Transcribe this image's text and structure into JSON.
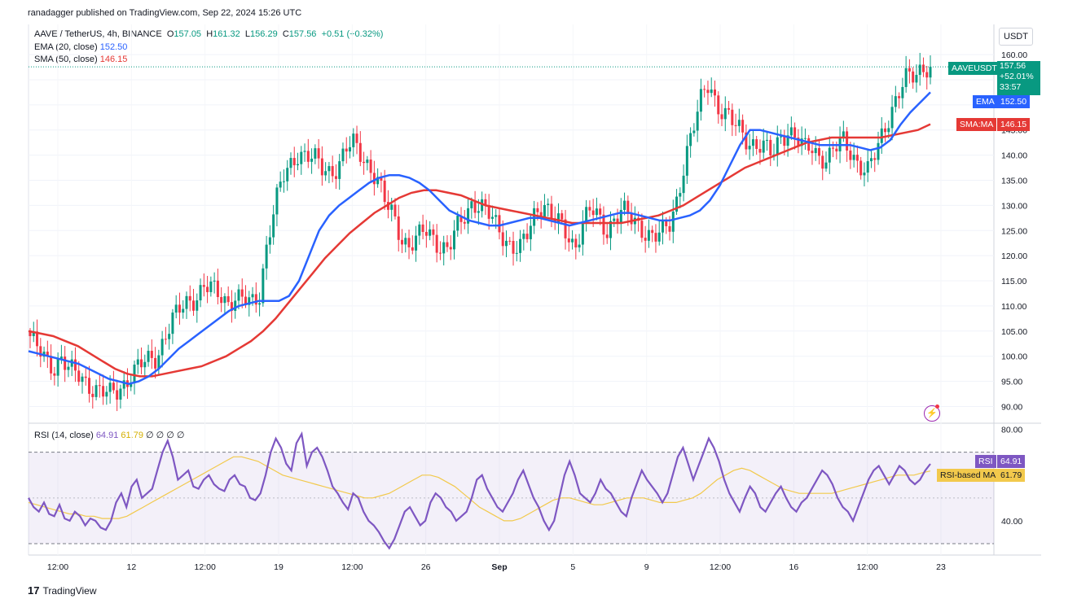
{
  "header": {
    "published": "ranadagger published on TradingView.com, Sep 22, 2024 15:26 UTC"
  },
  "legend": {
    "symbol": "AAVE / TetherUS, 4h, BINANCE",
    "o_label": "O",
    "o_value": "157.05",
    "h_label": "H",
    "h_value": "161.32",
    "l_label": "L",
    "l_value": "156.29",
    "c_label": "C",
    "c_value": "157.56",
    "change": "+0.51 (+0.32%)",
    "ema_label": "EMA (20, close)",
    "ema_value": "152.50",
    "sma_label": "SMA (50, close)",
    "sma_value": "146.15"
  },
  "rsi_legend": {
    "label": "RSI (14, close)",
    "rsi_value": "64.91",
    "ma_value": "61.79",
    "extra": "∅ ∅ ∅ ∅"
  },
  "axis": {
    "currency": "USDT"
  },
  "price_tags": {
    "symbol": "AAVEUSDT",
    "price": "157.56",
    "change_pct": "+52.01%",
    "countdown": "33:57",
    "ema_label": "EMA",
    "ema_value": "152.50",
    "sma_label": "SMA:MA",
    "sma_value": "146.15",
    "rsi_label": "RSI",
    "rsi_value": "64.91",
    "rsi_ma_label": "RSI-based MA",
    "rsi_ma_value": "61.79"
  },
  "footer": {
    "brand": "TradingView",
    "logo": "17"
  },
  "colors": {
    "up": "#089981",
    "down": "#f23645",
    "ema": "#2962ff",
    "sma": "#e53935",
    "rsi": "#7e57c2",
    "rsi_ma": "#f2c94c",
    "rsi_band": "#7e57c2"
  },
  "chart_data": [
    {
      "type": "candlestick",
      "title": "AAVE / TetherUS, 4h, BINANCE",
      "y_ticks": [
        90,
        95,
        100,
        105,
        110,
        115,
        120,
        125,
        130,
        135,
        140,
        145,
        150,
        155,
        160
      ],
      "y_tick_labels": [
        "90.00",
        "95.00",
        "100.00",
        "105.00",
        "110.00",
        "115.00",
        "120.00",
        "125.00",
        "130.00",
        "135.00",
        "140.00",
        "145.00",
        "150.00",
        "155.00",
        "160.00"
      ],
      "x_tick_labels": [
        "12:00",
        "12",
        "12:00",
        "19",
        "12:00",
        "26",
        "Sep",
        "5",
        "9",
        "12:00",
        "16",
        "12:00",
        "23"
      ],
      "ylim": [
        87,
        166
      ],
      "close_path": [
        104,
        101,
        99,
        98,
        100,
        97,
        96,
        95,
        94,
        93,
        92,
        93,
        95,
        97,
        98,
        99,
        100,
        104,
        107,
        109,
        111,
        112,
        114,
        113,
        112,
        111,
        112,
        111,
        110,
        112,
        123,
        130,
        135,
        138,
        141,
        140,
        139,
        137,
        137,
        138,
        141,
        142,
        140,
        138,
        135,
        130,
        128,
        124,
        122,
        123,
        125,
        124,
        122,
        121,
        125,
        128,
        131,
        130,
        128,
        126,
        124,
        122,
        121,
        124,
        129,
        131,
        128,
        126,
        124,
        122,
        127,
        129,
        127,
        125,
        128,
        129,
        127,
        126,
        125,
        124,
        124,
        126,
        132,
        140,
        145,
        151,
        155,
        150,
        148,
        146,
        145,
        143,
        142,
        141,
        140,
        144,
        145,
        143,
        141,
        142,
        140,
        139,
        141,
        143,
        141,
        138,
        136,
        140,
        145,
        149,
        152,
        155,
        156,
        158,
        157.56
      ],
      "ema20_path": [
        101,
        100.5,
        100,
        99.5,
        99,
        98.5,
        97.5,
        96.5,
        95.5,
        95,
        94.5,
        95,
        96,
        97.5,
        99.5,
        101.5,
        103,
        104.5,
        106,
        107.5,
        109,
        110,
        110.5,
        111,
        111,
        111,
        112,
        115,
        120,
        125,
        128,
        130,
        131.5,
        133,
        134.5,
        135.5,
        136,
        136,
        135.5,
        134.5,
        133,
        131,
        129,
        128,
        127,
        126.5,
        126,
        126,
        126.5,
        127,
        127.5,
        127.5,
        127,
        126.5,
        126,
        126.5,
        127,
        127.5,
        128,
        128.5,
        128.5,
        128,
        127.5,
        127,
        127,
        127.5,
        128,
        129,
        131,
        134,
        138,
        142,
        145,
        145,
        144.5,
        144,
        143.5,
        143,
        142.5,
        142,
        142,
        142,
        142,
        141.5,
        141,
        141.5,
        143,
        146,
        148.5,
        150.5,
        152.5
      ],
      "sma50_path": [
        105,
        104.5,
        104,
        103,
        102,
        100.5,
        99,
        97.5,
        96.5,
        96,
        96,
        96.5,
        97,
        97.5,
        98,
        99,
        100,
        101.5,
        103,
        105,
        107.5,
        110.5,
        113.5,
        116.5,
        119.5,
        122,
        124.5,
        126.5,
        128.5,
        130,
        131.5,
        132.5,
        133,
        133,
        132.5,
        132,
        131,
        130,
        129.5,
        129,
        128.5,
        128,
        127.5,
        127,
        126.5,
        126.5,
        126.5,
        126.5,
        126.5,
        127,
        127.5,
        128,
        129,
        130,
        131.5,
        133,
        134.5,
        136,
        137.5,
        138.5,
        139.5,
        140.5,
        141.5,
        142.5,
        143,
        143.5,
        143.5,
        143.5,
        143.5,
        143.5,
        144,
        144.5,
        145,
        146.15
      ],
      "last_price": 157.56,
      "ema20_last": 152.5,
      "sma50_last": 146.15
    },
    {
      "type": "line",
      "title": "RSI (14, close)",
      "y_tick_labels": [
        "80.00",
        "40.00"
      ],
      "ylim": [
        25,
        82
      ],
      "band": [
        30,
        70
      ],
      "midline": 50,
      "series": [
        {
          "name": "RSI",
          "values": [
            50,
            46,
            44,
            48,
            43,
            42,
            47,
            41,
            40,
            44,
            42,
            38,
            41,
            40,
            37,
            36,
            40,
            48,
            52,
            46,
            55,
            58,
            50,
            52,
            54,
            62,
            70,
            75,
            68,
            58,
            60,
            62,
            55,
            54,
            58,
            60,
            56,
            54,
            53,
            58,
            60,
            56,
            55,
            50,
            49,
            52,
            60,
            70,
            76,
            72,
            65,
            62,
            74,
            78,
            64,
            70,
            72,
            68,
            62,
            55,
            52,
            48,
            45,
            52,
            50,
            44,
            40,
            38,
            35,
            31,
            28,
            32,
            38,
            44,
            46,
            42,
            38,
            40,
            48,
            52,
            50,
            46,
            44,
            40,
            42,
            44,
            50,
            58,
            60,
            54,
            50,
            46,
            44,
            48,
            52,
            58,
            62,
            56,
            50,
            46,
            40,
            36,
            40,
            50,
            60,
            66,
            60,
            52,
            50,
            48,
            52,
            58,
            54,
            52,
            48,
            44,
            42,
            50,
            56,
            62,
            58,
            55,
            52,
            48,
            52,
            60,
            68,
            72,
            65,
            58,
            64,
            70,
            76,
            72,
            66,
            58,
            52,
            48,
            44,
            50,
            55,
            52,
            46,
            44,
            48,
            52,
            55,
            50,
            46,
            44,
            48,
            50,
            54,
            58,
            62,
            60,
            56,
            50,
            46,
            44,
            40,
            46,
            52,
            58,
            62,
            64,
            60,
            56,
            60,
            64,
            62,
            58,
            56,
            58,
            62,
            64.91
          ]
        },
        {
          "name": "RSI-based MA",
          "values": [
            48,
            47,
            46,
            45,
            44,
            43,
            43,
            42,
            42,
            41,
            41,
            41,
            42,
            44,
            46,
            48,
            50,
            52,
            54,
            56,
            58,
            60,
            62,
            64,
            66,
            68,
            68,
            67,
            66,
            64,
            62,
            60,
            59,
            58,
            57,
            56,
            55,
            54,
            53,
            52,
            51,
            50,
            50,
            51,
            52,
            54,
            56,
            58,
            60,
            60,
            59,
            57,
            55,
            52,
            49,
            46,
            44,
            42,
            40,
            40,
            41,
            43,
            45,
            47,
            49,
            50,
            50,
            49,
            48,
            47,
            47,
            48,
            49,
            50,
            50,
            50,
            49,
            48,
            48,
            48,
            49,
            50,
            52,
            55,
            58,
            60,
            62,
            63,
            62,
            60,
            58,
            56,
            54,
            53,
            52,
            52,
            52,
            52,
            52,
            53,
            54,
            55,
            56,
            57,
            58,
            59,
            60,
            60,
            60,
            61,
            61.79
          ]
        }
      ]
    }
  ]
}
